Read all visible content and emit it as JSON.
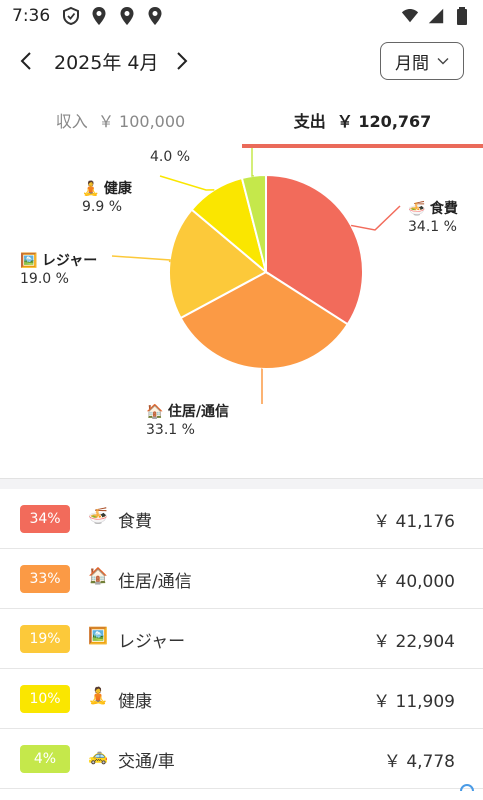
{
  "status": {
    "time": "7:36"
  },
  "header": {
    "month": "2025年 4月",
    "period": "月間"
  },
  "tabs": {
    "income": {
      "label": "収入",
      "amount": "￥ 100,000"
    },
    "expense": {
      "label": "支出",
      "amount": "￥ 120,767"
    }
  },
  "chart_data": {
    "type": "pie",
    "slices": [
      {
        "name": "食費",
        "percent": 34.1,
        "color": "#f26b5b",
        "label_pct": "34.1 %"
      },
      {
        "name": "住居/通信",
        "percent": 33.1,
        "color": "#fb9a45",
        "label_pct": "33.1 %"
      },
      {
        "name": "レジャー",
        "percent": 19.0,
        "color": "#fcc93a",
        "label_pct": "19.0 %"
      },
      {
        "name": "健康",
        "percent": 9.9,
        "color": "#fae600",
        "label_pct": "9.9 %"
      },
      {
        "name": "交通/車",
        "percent": 4.0,
        "color": "#c5e84b",
        "label_pct": "4.0 %"
      }
    ]
  },
  "categories": [
    {
      "badge": "34%",
      "name": "食費",
      "amount": "￥ 41,176",
      "color": "#f26b5b",
      "icon": "ramen-icon"
    },
    {
      "badge": "33%",
      "name": "住居/通信",
      "amount": "￥ 40,000",
      "color": "#fb9a45",
      "icon": "house-icon"
    },
    {
      "badge": "19%",
      "name": "レジャー",
      "amount": "￥ 22,904",
      "color": "#fcc93a",
      "icon": "picture-icon"
    },
    {
      "badge": "10%",
      "name": "健康",
      "amount": "￥ 11,909",
      "color": "#fae600",
      "icon": "yoga-icon"
    },
    {
      "badge": "4%",
      "name": "交通/車",
      "amount": "￥ 4,778",
      "color": "#c5e84b",
      "icon": "taxi-icon"
    }
  ]
}
